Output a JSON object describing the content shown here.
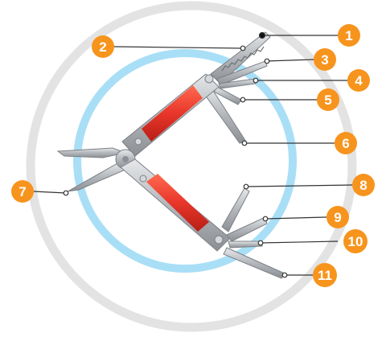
{
  "diagram": {
    "subject": "multi-tool pliers with folding tools",
    "colors": {
      "badge": "#f7941d",
      "outer_ring": "#e3e3e3",
      "inner_ring": "#a9dff6",
      "handle": "#e8362a",
      "steel": "#b9bcc0",
      "leader": "#333333"
    },
    "callouts": [
      {
        "number": "1"
      },
      {
        "number": "2"
      },
      {
        "number": "3"
      },
      {
        "number": "4"
      },
      {
        "number": "5"
      },
      {
        "number": "6"
      },
      {
        "number": "7"
      },
      {
        "number": "8"
      },
      {
        "number": "9"
      },
      {
        "number": "10"
      },
      {
        "number": "11"
      }
    ]
  }
}
